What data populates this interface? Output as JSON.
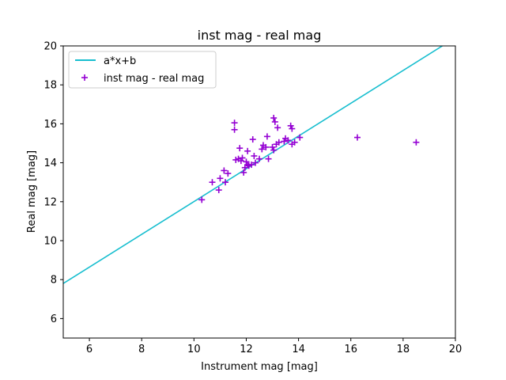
{
  "chart_data": {
    "type": "scatter",
    "title": "inst mag - real mag",
    "xlabel": "Instrument mag [mag]",
    "ylabel": "Real mag [mag]",
    "xlim": [
      5,
      20
    ],
    "ylim": [
      5,
      20
    ],
    "xticks": [
      6,
      8,
      10,
      12,
      14,
      16,
      18,
      20
    ],
    "yticks": [
      6,
      8,
      10,
      12,
      14,
      16,
      18,
      20
    ],
    "grid": false,
    "legend_position": "top-left",
    "fit_line": {
      "name": "a*x+b",
      "color": "#17becf",
      "x": [
        5,
        19.5
      ],
      "y": [
        7.8,
        20.0
      ]
    },
    "series": [
      {
        "name": "inst mag - real mag",
        "color": "#9400d3",
        "marker": "+",
        "points": [
          [
            10.3,
            12.1
          ],
          [
            10.7,
            13.0
          ],
          [
            10.95,
            12.6
          ],
          [
            11.0,
            13.2
          ],
          [
            11.15,
            13.6
          ],
          [
            11.2,
            13.0
          ],
          [
            11.3,
            13.45
          ],
          [
            11.55,
            16.05
          ],
          [
            11.55,
            15.7
          ],
          [
            11.6,
            14.15
          ],
          [
            11.7,
            14.2
          ],
          [
            11.75,
            14.75
          ],
          [
            11.8,
            14.1
          ],
          [
            11.85,
            14.25
          ],
          [
            11.9,
            13.5
          ],
          [
            11.95,
            13.75
          ],
          [
            12.0,
            14.05
          ],
          [
            12.05,
            13.9
          ],
          [
            12.05,
            14.6
          ],
          [
            12.1,
            13.85
          ],
          [
            12.2,
            13.9
          ],
          [
            12.25,
            15.2
          ],
          [
            12.3,
            14.35
          ],
          [
            12.35,
            14.0
          ],
          [
            12.5,
            14.2
          ],
          [
            12.6,
            14.7
          ],
          [
            12.65,
            14.9
          ],
          [
            12.75,
            14.8
          ],
          [
            12.8,
            15.35
          ],
          [
            12.85,
            14.2
          ],
          [
            13.0,
            14.8
          ],
          [
            13.05,
            14.65
          ],
          [
            13.05,
            16.3
          ],
          [
            13.1,
            16.1
          ],
          [
            13.15,
            14.95
          ],
          [
            13.2,
            15.8
          ],
          [
            13.25,
            15.05
          ],
          [
            13.45,
            15.1
          ],
          [
            13.5,
            15.25
          ],
          [
            13.6,
            15.15
          ],
          [
            13.7,
            15.9
          ],
          [
            13.75,
            15.75
          ],
          [
            13.75,
            14.95
          ],
          [
            13.85,
            15.05
          ],
          [
            14.05,
            15.3
          ],
          [
            16.25,
            15.3
          ],
          [
            18.5,
            15.05
          ]
        ]
      }
    ]
  }
}
